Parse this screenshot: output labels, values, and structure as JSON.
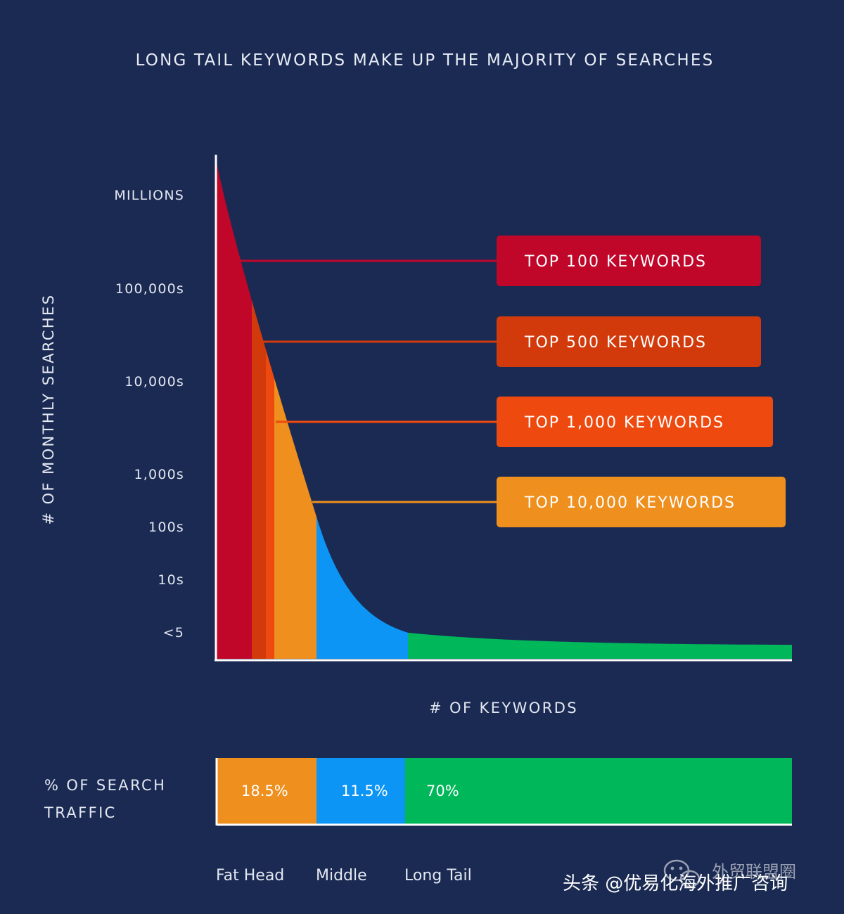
{
  "chart_data": {
    "type": "area",
    "title": "LONG TAIL KEYWORDS MAKE UP THE MAJORITY OF SEARCHES",
    "ylabel": "# OF MONTHLY SEARCHES",
    "xlabel": "# OF KEYWORDS",
    "y_ticks": [
      "MILLIONS",
      "100,000s",
      "10,000s",
      "1,000s",
      "100s",
      "10s",
      "<5"
    ],
    "callouts": [
      {
        "label": "TOP 100 KEYWORDS",
        "color": "#c0072a"
      },
      {
        "label": "TOP 500 KEYWORDS",
        "color": "#d23a0c"
      },
      {
        "label": "TOP 1,000 KEYWORDS",
        "color": "#ee4a10"
      },
      {
        "label": "TOP 10,000 KEYWORDS",
        "color": "#ee8f1e"
      }
    ],
    "curve_bands": [
      {
        "name": "top-100",
        "color": "#c0072a"
      },
      {
        "name": "top-500",
        "color": "#d23a0c"
      },
      {
        "name": "top-1000",
        "color": "#ee4a10"
      },
      {
        "name": "top-10000",
        "color": "#ee8f1e"
      },
      {
        "name": "middle",
        "color": "#0d95f5"
      },
      {
        "name": "long-tail",
        "color": "#00b75a"
      }
    ],
    "traffic": {
      "label_line1": "% OF SEARCH",
      "label_line2": "TRAFFIC",
      "segments": [
        {
          "name": "Fat Head",
          "percent": 18.5,
          "label": "18.5%",
          "color": "#ee8f1e"
        },
        {
          "name": "Middle",
          "percent": 11.5,
          "label": "11.5%",
          "color": "#0d95f5"
        },
        {
          "name": "Long Tail",
          "percent": 70,
          "label": "70%",
          "color": "#00b75a"
        }
      ]
    }
  },
  "watermark": {
    "line1": "外贸联盟圈",
    "line2": "头条 @优易化海外推广咨询"
  }
}
